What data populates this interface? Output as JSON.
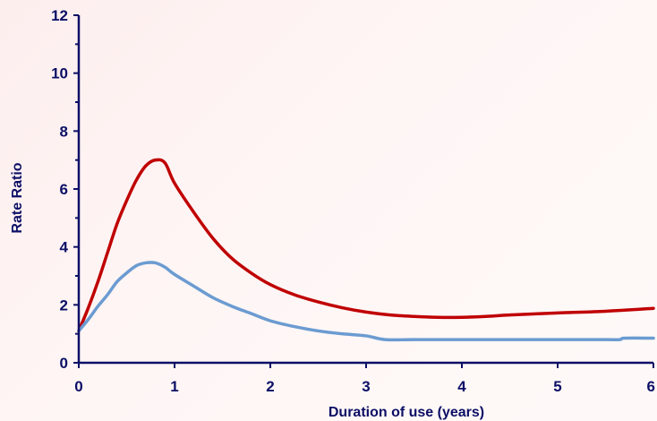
{
  "chart_data": {
    "type": "line",
    "title": "",
    "xlabel": "Duration of use (years)",
    "ylabel": "Rate Ratio",
    "xlim": [
      0,
      6
    ],
    "ylim": [
      0,
      12
    ],
    "x_ticks": [
      "0",
      "1",
      "2",
      "3",
      "4",
      "5",
      "6"
    ],
    "y_ticks": [
      "0",
      "2",
      "4",
      "6",
      "8",
      "10",
      "12"
    ],
    "grid": false,
    "legend": "none",
    "colors": {
      "axis": "#0c0f66",
      "background": "#fdf0ee"
    },
    "series": [
      {
        "color": "#c00000",
        "points": [
          [
            0,
            1.1
          ],
          [
            0.1,
            1.9
          ],
          [
            0.2,
            2.8
          ],
          [
            0.3,
            3.8
          ],
          [
            0.4,
            4.8
          ],
          [
            0.5,
            5.6
          ],
          [
            0.6,
            6.3
          ],
          [
            0.7,
            6.8
          ],
          [
            0.8,
            7.0
          ],
          [
            0.9,
            6.9
          ],
          [
            1.0,
            6.2
          ],
          [
            1.2,
            5.2
          ],
          [
            1.4,
            4.3
          ],
          [
            1.6,
            3.6
          ],
          [
            1.8,
            3.1
          ],
          [
            2.0,
            2.7
          ],
          [
            2.25,
            2.35
          ],
          [
            2.5,
            2.1
          ],
          [
            2.75,
            1.9
          ],
          [
            3.0,
            1.75
          ],
          [
            3.25,
            1.65
          ],
          [
            3.5,
            1.6
          ],
          [
            3.75,
            1.57
          ],
          [
            4.0,
            1.57
          ],
          [
            4.25,
            1.6
          ],
          [
            4.5,
            1.65
          ],
          [
            5.0,
            1.72
          ],
          [
            5.5,
            1.78
          ],
          [
            6.0,
            1.88
          ]
        ]
      },
      {
        "color": "#6b9bd1",
        "points": [
          [
            0,
            1.1
          ],
          [
            0.1,
            1.5
          ],
          [
            0.2,
            1.95
          ],
          [
            0.3,
            2.35
          ],
          [
            0.4,
            2.8
          ],
          [
            0.5,
            3.1
          ],
          [
            0.6,
            3.35
          ],
          [
            0.7,
            3.45
          ],
          [
            0.8,
            3.45
          ],
          [
            0.9,
            3.3
          ],
          [
            1.0,
            3.05
          ],
          [
            1.2,
            2.65
          ],
          [
            1.4,
            2.25
          ],
          [
            1.6,
            1.95
          ],
          [
            1.8,
            1.7
          ],
          [
            2.0,
            1.45
          ],
          [
            2.25,
            1.25
          ],
          [
            2.5,
            1.1
          ],
          [
            2.75,
            1.0
          ],
          [
            3.0,
            0.93
          ],
          [
            3.2,
            0.8
          ],
          [
            3.5,
            0.8
          ],
          [
            4.0,
            0.8
          ],
          [
            4.5,
            0.8
          ],
          [
            5.0,
            0.8
          ],
          [
            5.5,
            0.8
          ],
          [
            5.65,
            0.8
          ],
          [
            5.7,
            0.85
          ],
          [
            6.0,
            0.85
          ]
        ]
      }
    ]
  }
}
